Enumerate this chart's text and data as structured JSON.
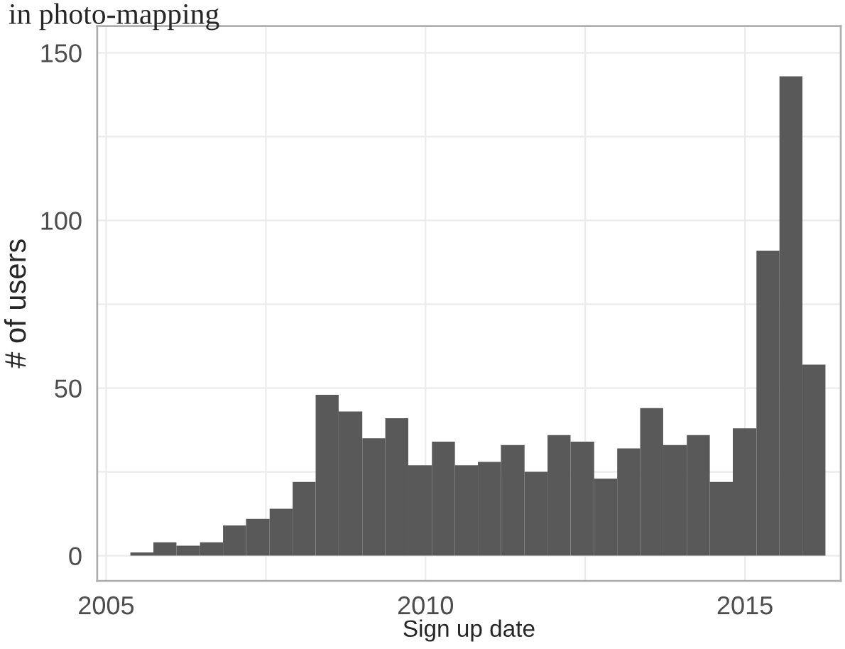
{
  "chart_data": {
    "type": "histogram",
    "title": "in photo-mapping",
    "xlabel": "Sign up date",
    "ylabel": "# of users",
    "bins": [
      2005.38,
      2005.74,
      2006.1,
      2006.47,
      2006.83,
      2007.19,
      2007.56,
      2007.92,
      2008.28,
      2008.64,
      2009.01,
      2009.37,
      2009.73,
      2010.1,
      2010.46,
      2010.82,
      2011.18,
      2011.55,
      2011.91,
      2012.27,
      2012.64,
      2013.0,
      2013.36,
      2013.72,
      2014.09,
      2014.45,
      2014.81,
      2015.18,
      2015.54,
      2015.9,
      2016.26
    ],
    "values": [
      1,
      4,
      3,
      4,
      9,
      11,
      14,
      22,
      48,
      43,
      35,
      41,
      27,
      34,
      27,
      28,
      33,
      25,
      36,
      34,
      23,
      32,
      44,
      33,
      36,
      22,
      38,
      91,
      143,
      57
    ],
    "color": "#595959",
    "xlim": [
      2004.86,
      2016.5
    ],
    "xticks": [
      2005,
      2010,
      2015
    ],
    "ylim": [
      -7.5,
      158
    ],
    "yticks": [
      0,
      50,
      100,
      150
    ],
    "grid": true
  }
}
